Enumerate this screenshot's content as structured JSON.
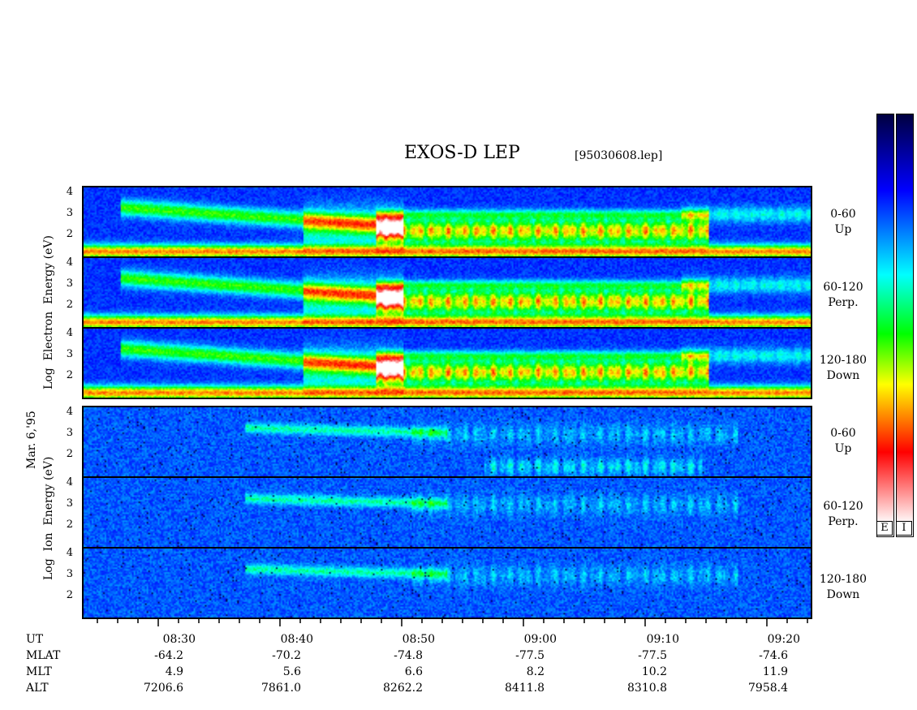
{
  "title": "EXOS-D LEP",
  "file": "[95030608.lep]",
  "date_label": "Mar. 6,'95",
  "electron_label": [
    "Log",
    "Electron",
    "Energy"
  ],
  "electron_unit": "(eV)",
  "ion_label": [
    "Log",
    "Ion",
    "Energy"
  ],
  "ion_unit": "(eV)",
  "colorbar": {
    "labels": [
      "E",
      "I"
    ]
  },
  "panels": [
    {
      "group": "electron",
      "line1": "0-60",
      "line2": "Up"
    },
    {
      "group": "electron",
      "line1": "60-120",
      "line2": "Perp."
    },
    {
      "group": "electron",
      "line1": "120-180",
      "line2": "Down"
    },
    {
      "group": "ion",
      "line1": "0-60",
      "line2": "Up"
    },
    {
      "group": "ion",
      "line1": "60-120",
      "line2": "Perp."
    },
    {
      "group": "ion",
      "line1": "120-180",
      "line2": "Down"
    }
  ],
  "row_labels": [
    "UT",
    "MLAT",
    "MLT",
    "ALT"
  ],
  "columns": [
    {
      "ut": "08:30",
      "mlat": "-64.2",
      "mlt": "4.9",
      "alt": "7206.6"
    },
    {
      "ut": "08:40",
      "mlat": "-70.2",
      "mlt": "5.6",
      "alt": "7861.0"
    },
    {
      "ut": "08:50",
      "mlat": "-74.8",
      "mlt": "6.6",
      "alt": "8262.2"
    },
    {
      "ut": "09:00",
      "mlat": "-77.5",
      "mlt": "8.2",
      "alt": "8411.8"
    },
    {
      "ut": "09:10",
      "mlat": "-77.5",
      "mlt": "10.2",
      "alt": "8310.8"
    },
    {
      "ut": "09:20",
      "mlat": "-74.6",
      "mlt": "11.9",
      "alt": "7958.4"
    }
  ],
  "chart_data": {
    "type": "heatmap",
    "title": "EXOS-D LEP",
    "x_axis": "UT",
    "x_ticks": [
      "08:30",
      "08:40",
      "08:50",
      "09:00",
      "09:10",
      "09:20"
    ],
    "y_ticks": [
      "2",
      "3",
      "4"
    ],
    "ylim": [
      1,
      4.2
    ],
    "y_scale": "log energy (eV)",
    "colormap": [
      "#ffffff",
      "#ff0000",
      "#ff8000",
      "#ffff00",
      "#00ff00",
      "#00ffff",
      "#0000ff",
      "#000040"
    ],
    "panels": [
      "Electron 0-60 Up",
      "Electron 60-120 Perp.",
      "Electron 120-180 Down",
      "Ion 0-60 Up",
      "Ion 60-120 Perp.",
      "Ion 120-180 Down"
    ]
  }
}
